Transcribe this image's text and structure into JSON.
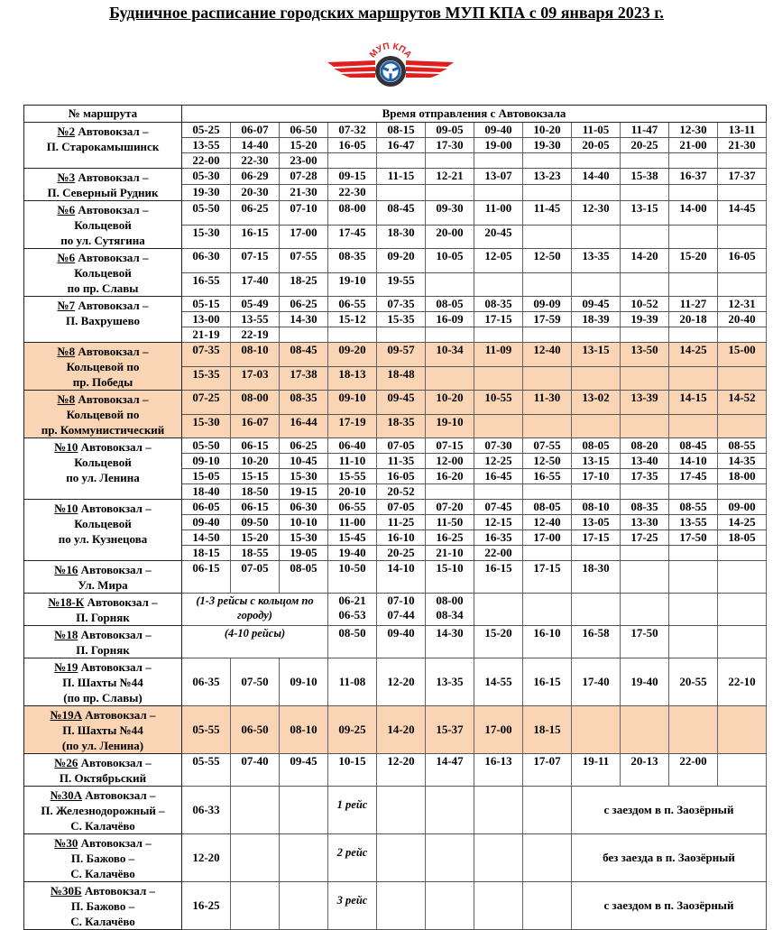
{
  "title": "Будничное расписание городских маршрутов МУП КПА с 09 января 2023 г.",
  "logo": {
    "text": "МУП КПА",
    "colors": {
      "red": "#e02020",
      "blue": "#1f5fb0",
      "dark": "#333333"
    }
  },
  "header": {
    "route_col": "№ маршрута",
    "times_col": "Время отправления  с Автовокзала"
  },
  "highlight_color": "#f9d5b6",
  "routes": [
    {
      "number": "№2",
      "name_lines": [
        "Автовокзал –",
        "П. Старокамышинск"
      ],
      "rows": [
        [
          "05-25",
          "06-07",
          "06-50",
          "07-32",
          "08-15",
          "09-05",
          "09-40",
          "10-20",
          "11-05",
          "11-47",
          "12-30",
          "13-11"
        ],
        [
          "13-55",
          "14-40",
          "15-20",
          "16-05",
          "16-47",
          "17-30",
          "19-00",
          "19-30",
          "20-05",
          "20-25",
          "21-00",
          "21-30"
        ],
        [
          "22-00",
          "22-30",
          "23-00"
        ]
      ]
    },
    {
      "number": "№3",
      "name_lines": [
        "Автовокзал –",
        "П. Северный Рудник"
      ],
      "rows": [
        [
          "05-30",
          "06-29",
          "07-28",
          "09-15",
          "11-15",
          "12-21",
          "13-07",
          "13-23",
          "14-40",
          "15-38",
          "16-37",
          "17-37"
        ],
        [
          "19-30",
          "20-30",
          "21-30",
          "22-30"
        ]
      ]
    },
    {
      "number": "№6",
      "name_lines": [
        "Автовокзал –",
        "Кольцевой",
        "по ул. Сутягина"
      ],
      "rows": [
        [
          "05-50",
          "06-25",
          "07-10",
          "08-00",
          "08-45",
          "09-30",
          "11-00",
          "11-45",
          "12-30",
          "13-15",
          "14-00",
          "14-45"
        ],
        [
          "15-30",
          "16-15",
          "17-00",
          "17-45",
          "18-30",
          "20-00",
          "20-45"
        ]
      ]
    },
    {
      "number": "№6",
      "name_lines": [
        "Автовокзал –",
        "Кольцевой",
        "по пр. Славы"
      ],
      "rows": [
        [
          "06-30",
          "07-15",
          "07-55",
          "08-35",
          "09-20",
          "10-05",
          "12-05",
          "12-50",
          "13-35",
          "14-20",
          "15-20",
          "16-05"
        ],
        [
          "16-55",
          "17-40",
          "18-25",
          "19-10",
          "19-55"
        ]
      ]
    },
    {
      "number": "№7",
      "name_lines": [
        "Автовокзал –",
        "П. Вахрушево"
      ],
      "rows": [
        [
          "05-15",
          "05-49",
          "06-25",
          "06-55",
          "07-35",
          "08-05",
          "08-35",
          "09-09",
          "09-45",
          "10-52",
          "11-27",
          "12-31"
        ],
        [
          "13-00",
          "13-55",
          "14-30",
          "15-12",
          "15-35",
          "16-09",
          "17-15",
          "17-59",
          "18-39",
          "19-39",
          "20-18",
          "20-40"
        ],
        [
          "21-19",
          "22-19"
        ]
      ]
    },
    {
      "number": "№8",
      "highlight": true,
      "name_lines": [
        "Автовокзал –",
        "Кольцевой по",
        "пр. Победы"
      ],
      "rows": [
        [
          "07-35",
          "08-10",
          "08-45",
          "09-20",
          "09-57",
          "10-34",
          "11-09",
          "12-40",
          "13-15",
          "13-50",
          "14-25",
          "15-00"
        ],
        [
          "15-35",
          "17-03",
          "17-38",
          "18-13",
          "18-48"
        ]
      ]
    },
    {
      "number": "№8",
      "highlight": true,
      "name_lines": [
        "Автовокзал –",
        "Кольцевой по",
        "пр. Коммунистический"
      ],
      "rows": [
        [
          "07-25",
          "08-00",
          "08-35",
          "09-10",
          "09-45",
          "10-20",
          "10-55",
          "11-30",
          "13-02",
          "13-39",
          "14-15",
          "14-52"
        ],
        [
          "15-30",
          "16-07",
          "16-44",
          "17-19",
          "18-35",
          "19-10"
        ]
      ]
    },
    {
      "number": "№10",
      "name_lines": [
        "Автовокзал –",
        "Кольцевой",
        "по ул. Ленина"
      ],
      "rows": [
        [
          "05-50",
          "06-15",
          "06-25",
          "06-40",
          "07-05",
          "07-15",
          "07-30",
          "07-55",
          "08-05",
          "08-20",
          "08-45",
          "08-55"
        ],
        [
          "09-10",
          "10-20",
          "10-45",
          "11-10",
          "11-35",
          "12-00",
          "12-25",
          "12-50",
          "13-15",
          "13-40",
          "14-10",
          "14-35"
        ],
        [
          "15-05",
          "15-15",
          "15-30",
          "15-55",
          "16-05",
          "16-20",
          "16-45",
          "16-55",
          "17-10",
          "17-35",
          "17-45",
          "18-00"
        ],
        [
          "18-40",
          "18-50",
          "19-15",
          "20-10",
          "20-52"
        ]
      ]
    },
    {
      "number": "№10",
      "name_lines": [
        "Автовокзал –",
        "Кольцевой",
        "по ул. Кузнецова"
      ],
      "rows": [
        [
          "06-05",
          "06-15",
          "06-30",
          "06-55",
          "07-05",
          "07-20",
          "07-45",
          "08-05",
          "08-10",
          "08-35",
          "08-55",
          "09-00"
        ],
        [
          "09-40",
          "09-50",
          "10-10",
          "11-00",
          "11-25",
          "11-50",
          "12-15",
          "12-40",
          "13-05",
          "13-30",
          "13-55",
          "14-25"
        ],
        [
          "14-50",
          "15-20",
          "15-30",
          "15-45",
          "16-10",
          "16-25",
          "16-35",
          "17-00",
          "17-15",
          "17-25",
          "17-50",
          "18-05"
        ],
        [
          "18-15",
          "18-55",
          "19-05",
          "19-40",
          "20-25",
          "21-10",
          "22-00"
        ]
      ]
    },
    {
      "number": "№16",
      "name_lines": [
        "Автовокзал –",
        "Ул. Мира"
      ],
      "rows": [
        [
          "06-15",
          "07-05",
          "08-05",
          "10-50",
          "14-10",
          "15-10",
          "16-15",
          "17-15",
          "18-30"
        ]
      ]
    },
    {
      "number": "№18-К",
      "name_lines": [
        "Автовокзал –",
        "П. Горняк"
      ],
      "rows": [
        [
          {
            "text": "(1-3 рейсы с кольцом по городу)",
            "span": 3,
            "italic": true
          },
          "06-21 06-53",
          "07-10 07-44",
          "08-00 08-34"
        ]
      ]
    },
    {
      "number": "№18",
      "name_lines": [
        "Автовокзал –",
        "П. Горняк"
      ],
      "rows": [
        [
          {
            "text": "(4-10 рейсы)",
            "span": 3,
            "italic": true
          },
          "08-50",
          "09-40",
          "14-30",
          "15-20",
          "16-10",
          "16-58",
          "17-50"
        ]
      ]
    },
    {
      "number": "№19",
      "middle": true,
      "name_lines": [
        "Автовокзал –",
        "П. Шахты №44",
        "(по пр. Славы)"
      ],
      "rows": [
        [
          "06-35",
          "07-50",
          "09-10",
          "11-08",
          "12-20",
          "13-35",
          "14-55",
          "16-15",
          "17-40",
          "19-40",
          "20-55",
          "22-10"
        ]
      ]
    },
    {
      "number": "№19А",
      "highlight": true,
      "middle": true,
      "name_lines": [
        "Автовокзал –",
        "П. Шахты №44",
        "(по ул. Ленина)"
      ],
      "rows": [
        [
          "05-55",
          "06-50",
          "08-10",
          "09-25",
          "14-20",
          "15-37",
          "17-00",
          "18-15"
        ]
      ]
    },
    {
      "number": "№26",
      "name_lines": [
        "Автовокзал –",
        "П. Октябрьский"
      ],
      "rows": [
        [
          "05-55",
          "07-40",
          "09-45",
          "10-15",
          "12-20",
          "14-47",
          "16-13",
          "17-07",
          "19-11",
          "20-13",
          "22-00"
        ]
      ]
    },
    {
      "number": "№30А",
      "middle": true,
      "name_lines": [
        "Автовокзал –",
        "П. Железнодорожный –",
        "С. Калачёво"
      ],
      "rows": [
        [
          "06-33",
          "",
          "",
          {
            "text": "1 рейс",
            "italic": true,
            "top": true
          },
          "",
          "",
          "",
          "",
          {
            "text": "с заездом в п. Заозёрный",
            "span": 4,
            "right": true
          }
        ]
      ]
    },
    {
      "number": "№30",
      "middle": true,
      "name_lines": [
        "Автовокзал –",
        "П. Бажово –",
        "С. Калачёво"
      ],
      "rows": [
        [
          "12-20",
          "",
          "",
          {
            "text": "2 рейс",
            "italic": true,
            "top": true
          },
          "",
          "",
          "",
          "",
          {
            "text": "без заезда в п. Заозёрный",
            "span": 4,
            "right": true
          }
        ]
      ]
    },
    {
      "number": "№30Б",
      "middle": true,
      "name_lines": [
        "Автовокзал –",
        "П. Бажово –",
        "С. Калачёво"
      ],
      "rows": [
        [
          "16-25",
          "",
          "",
          {
            "text": "3 рейс",
            "italic": true,
            "top": true
          },
          "",
          "",
          "",
          "",
          {
            "text": "с заездом в п. Заозёрный",
            "span": 4,
            "right": true
          }
        ]
      ]
    }
  ]
}
